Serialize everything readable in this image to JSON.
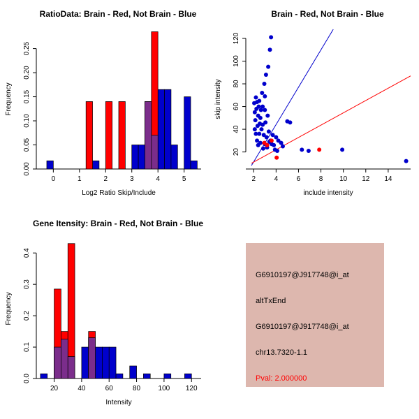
{
  "figure": {
    "background": "#FFFFFF"
  },
  "colors": {
    "red": "#FF0000",
    "blue": "#0000CC",
    "overlap": "#7B2D8B",
    "axis": "#000000"
  },
  "chart_data": [
    {
      "type": "bar",
      "id": "ratio_histogram",
      "title": "RatioData: Brain - Red, Not Brain - Blue",
      "xlabel": "Log2 Ratio Skip/Include",
      "ylabel": "Frequency",
      "xlim": [
        -0.65,
        5.65
      ],
      "ylim": [
        0,
        0.29
      ],
      "xticks": [
        0,
        1,
        2,
        3,
        4,
        5
      ],
      "xtick_labels": [
        "0",
        "1",
        "2",
        "3",
        "4",
        "5"
      ],
      "yticks": [
        0,
        0.05,
        0.1,
        0.15,
        0.2,
        0.25
      ],
      "ytick_labels": [
        "0.00",
        "0.05",
        "0.10",
        "0.15",
        "0.20",
        "0.25"
      ],
      "grid": false,
      "bin_width": 0.25,
      "series": [
        {
          "name": "Not Brain",
          "color": "blue",
          "bars": [
            [
              -0.25,
              0.017
            ],
            [
              1.5,
              0.017
            ],
            [
              3.0,
              0.05
            ],
            [
              3.25,
              0.05
            ],
            [
              3.5,
              0.14
            ],
            [
              3.75,
              0.07
            ],
            [
              4.0,
              0.165
            ],
            [
              4.25,
              0.165
            ],
            [
              4.5,
              0.05
            ],
            [
              5.0,
              0.15
            ],
            [
              5.25,
              0.017
            ]
          ]
        },
        {
          "name": "Brain",
          "color": "red",
          "bars": [
            [
              1.25,
              0.14
            ],
            [
              2.0,
              0.14
            ],
            [
              2.5,
              0.14
            ],
            [
              3.5,
              0.14
            ],
            [
              3.75,
              0.285
            ]
          ]
        }
      ]
    },
    {
      "type": "scatter",
      "id": "intensity_scatter",
      "title": "Brain - Red, Not Brain - Blue",
      "xlabel": "include intensity",
      "ylabel": "skip intensity",
      "xlim": [
        1.3,
        16.0
      ],
      "ylim": [
        5,
        128
      ],
      "xticks": [
        2,
        4,
        6,
        8,
        10,
        12,
        14
      ],
      "xtick_labels": [
        "2",
        "4",
        "6",
        "8",
        "10",
        "12",
        "14"
      ],
      "yticks": [
        20,
        40,
        60,
        80,
        100,
        120
      ],
      "ytick_labels": [
        "20",
        "40",
        "60",
        "80",
        "100",
        "120"
      ],
      "grid": false,
      "lines": [
        {
          "color": "blue",
          "x1": 1.8,
          "y1": 8,
          "x2": 9.1,
          "y2": 128
        },
        {
          "color": "red",
          "x1": 1.8,
          "y1": 10,
          "x2": 16.0,
          "y2": 87
        }
      ],
      "series": [
        {
          "name": "Not Brain",
          "color": "blue",
          "points": [
            [
              2.05,
              63
            ],
            [
              2.1,
              55
            ],
            [
              2.1,
              40
            ],
            [
              2.15,
              48
            ],
            [
              2.2,
              68
            ],
            [
              2.2,
              36
            ],
            [
              2.25,
              58
            ],
            [
              2.3,
              64
            ],
            [
              2.3,
              30
            ],
            [
              2.35,
              43
            ],
            [
              2.4,
              52
            ],
            [
              2.4,
              26
            ],
            [
              2.45,
              60
            ],
            [
              2.5,
              65
            ],
            [
              2.5,
              36
            ],
            [
              2.55,
              45
            ],
            [
              2.6,
              28
            ],
            [
              2.6,
              50
            ],
            [
              2.65,
              57
            ],
            [
              2.7,
              40
            ],
            [
              2.75,
              72
            ],
            [
              2.8,
              60
            ],
            [
              2.8,
              44
            ],
            [
              2.85,
              23
            ],
            [
              2.9,
              35
            ],
            [
              2.95,
              80
            ],
            [
              3.0,
              57
            ],
            [
              3.0,
              27
            ],
            [
              3.0,
              69
            ],
            [
              3.05,
              46
            ],
            [
              3.1,
              88
            ],
            [
              3.15,
              33
            ],
            [
              3.2,
              24
            ],
            [
              3.25,
              52
            ],
            [
              3.3,
              95
            ],
            [
              3.35,
              38
            ],
            [
              3.4,
              29
            ],
            [
              3.45,
              110
            ],
            [
              3.5,
              30
            ],
            [
              3.55,
              121
            ],
            [
              3.6,
              27
            ],
            [
              3.7,
              35
            ],
            [
              3.8,
              26
            ],
            [
              3.9,
              22
            ],
            [
              4.0,
              33
            ],
            [
              4.1,
              21
            ],
            [
              4.2,
              30
            ],
            [
              4.45,
              28
            ],
            [
              4.6,
              25
            ],
            [
              5.0,
              47
            ],
            [
              5.25,
              46
            ],
            [
              6.3,
              22
            ],
            [
              6.9,
              21
            ],
            [
              9.9,
              22
            ],
            [
              15.6,
              12
            ]
          ]
        },
        {
          "name": "Brain",
          "color": "red",
          "points": [
            [
              2.95,
              28
            ],
            [
              3.2,
              26
            ],
            [
              3.6,
              30
            ],
            [
              4.05,
              15
            ],
            [
              7.85,
              22
            ]
          ]
        }
      ]
    },
    {
      "type": "bar",
      "id": "gene_intensity_histogram",
      "title": "Gene Itensity: Brain - Red, Not Brain - Blue",
      "xlabel": "Intensity",
      "ylabel": "Frequency",
      "xlim": [
        7,
        127
      ],
      "ylim": [
        0,
        0.445
      ],
      "xticks": [
        20,
        40,
        60,
        80,
        100,
        120
      ],
      "xtick_labels": [
        "20",
        "40",
        "60",
        "80",
        "100",
        "120"
      ],
      "yticks": [
        0,
        0.1,
        0.2,
        0.3,
        0.4
      ],
      "ytick_labels": [
        "0.0",
        "0.1",
        "0.2",
        "0.3",
        "0.4"
      ],
      "grid": false,
      "bin_width": 5,
      "series": [
        {
          "name": "Not Brain",
          "color": "blue",
          "bars": [
            [
              10,
              0.015
            ],
            [
              20,
              0.1
            ],
            [
              25,
              0.125
            ],
            [
              30,
              0.07
            ],
            [
              40,
              0.1
            ],
            [
              45,
              0.13
            ],
            [
              50,
              0.1
            ],
            [
              55,
              0.1
            ],
            [
              60,
              0.1
            ],
            [
              65,
              0.015
            ],
            [
              75,
              0.04
            ],
            [
              85,
              0.015
            ],
            [
              100,
              0.015
            ],
            [
              115,
              0.015
            ]
          ]
        },
        {
          "name": "Brain",
          "color": "red",
          "bars": [
            [
              20,
              0.285
            ],
            [
              25,
              0.15
            ],
            [
              30,
              0.43
            ],
            [
              45,
              0.15
            ]
          ]
        }
      ]
    }
  ],
  "info_box": {
    "bg": "#DDB7AE",
    "lines": [
      {
        "text": "G6910197@J917748@i_at",
        "color": "#000000"
      },
      {
        "text": "altTxEnd",
        "color": "#000000"
      },
      {
        "text": "G6910197@J917748@i_at",
        "color": "#000000"
      },
      {
        "text": "chr13.7320-1.1",
        "color": "#000000"
      },
      {
        "text": "Pval: 2.000000",
        "color": "#FF0000"
      }
    ]
  }
}
